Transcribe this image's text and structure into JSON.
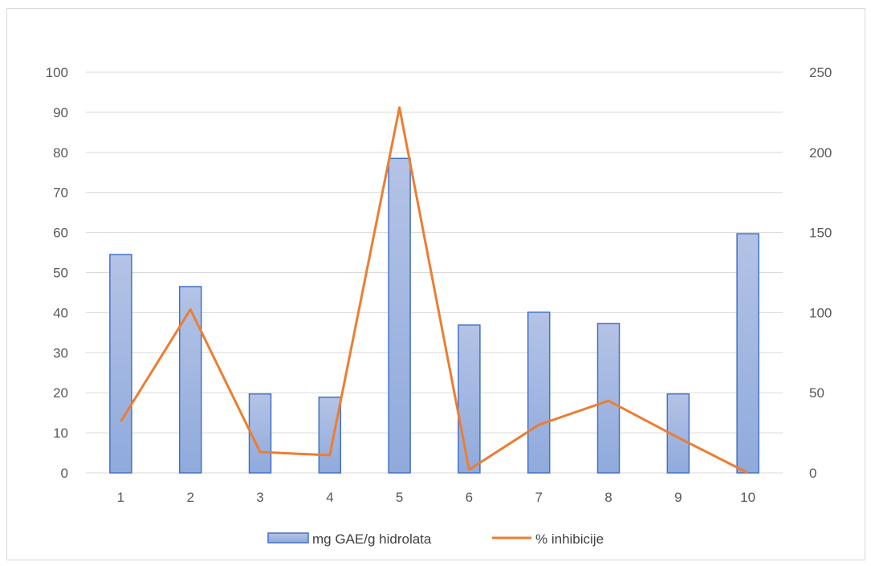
{
  "chart_data": {
    "type": "bar",
    "categories": [
      "1",
      "2",
      "3",
      "4",
      "5",
      "6",
      "7",
      "8",
      "9",
      "10"
    ],
    "series": [
      {
        "name": "mg GAE/g hidrolata",
        "type": "bar",
        "axis": "left",
        "color": "#8faadc",
        "values": [
          54.5,
          46.5,
          19.7,
          18.9,
          78.5,
          36.9,
          40.1,
          37.3,
          19.7,
          59.7
        ]
      },
      {
        "name": "% inhibicije",
        "type": "line",
        "axis": "right",
        "color": "#ed7d31",
        "values": [
          32,
          102,
          13,
          11,
          228,
          2,
          30,
          45,
          22,
          0
        ]
      }
    ],
    "ylim": [
      0,
      100
    ],
    "yticks": [
      "0",
      "10",
      "20",
      "30",
      "40",
      "50",
      "60",
      "70",
      "80",
      "90",
      "100"
    ],
    "y2lim": [
      0,
      250
    ],
    "y2ticks": [
      "0",
      "50",
      "100",
      "150",
      "200",
      "250"
    ],
    "grid": true,
    "legend": "bottom"
  }
}
